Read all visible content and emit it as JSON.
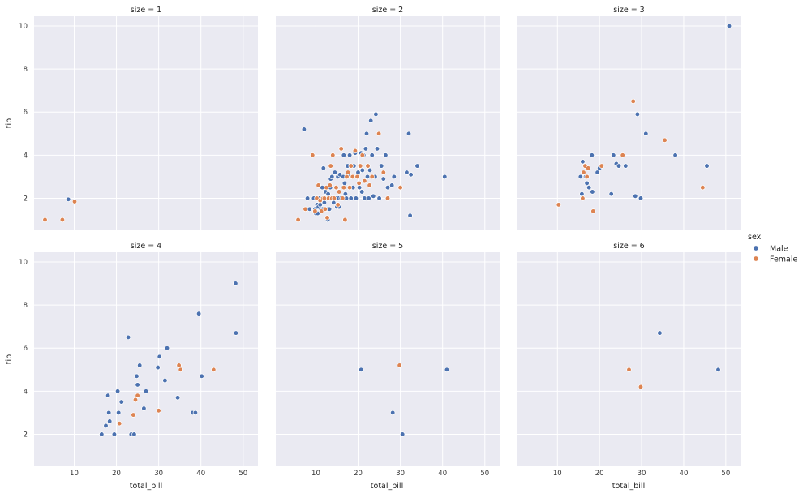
{
  "chart_data": {
    "type": "scatter",
    "x_label": "total_bill",
    "y_label": "tip",
    "xlim": [
      0.5,
      53.5
    ],
    "ylim": [
      0.55,
      10.45
    ],
    "x_ticks": [
      10,
      20,
      30,
      40,
      50
    ],
    "y_ticks": [
      2,
      4,
      6,
      8,
      10
    ],
    "grid": true,
    "legend": {
      "title": "sex",
      "position": "right",
      "entries": [
        {
          "name": "Male",
          "color": "#4c72b0"
        },
        {
          "name": "Female",
          "color": "#dd8452"
        }
      ]
    },
    "panels": [
      {
        "title": "size = 1",
        "male": [
          [
            8.6,
            1.95
          ]
        ],
        "female": [
          [
            3.1,
            1.0
          ],
          [
            7.2,
            1.0
          ],
          [
            10.1,
            1.85
          ]
        ]
      },
      {
        "title": "size = 2",
        "male": [
          [
            7.2,
            5.2
          ],
          [
            8.0,
            2.0
          ],
          [
            8.5,
            1.5
          ],
          [
            9.5,
            2.0
          ],
          [
            9.8,
            1.5
          ],
          [
            10.0,
            1.3
          ],
          [
            10.3,
            1.7
          ],
          [
            10.4,
            1.3
          ],
          [
            10.6,
            1.6
          ],
          [
            10.8,
            2.0
          ],
          [
            11.0,
            1.7
          ],
          [
            11.2,
            1.5
          ],
          [
            11.5,
            2.5
          ],
          [
            11.6,
            1.5
          ],
          [
            11.8,
            3.4
          ],
          [
            12.0,
            1.8
          ],
          [
            12.2,
            2.0
          ],
          [
            12.3,
            2.3
          ],
          [
            12.5,
            1.5
          ],
          [
            12.8,
            1.0
          ],
          [
            12.9,
            2.2
          ],
          [
            13.0,
            2.0
          ],
          [
            13.2,
            1.5
          ],
          [
            13.4,
            2.5
          ],
          [
            13.5,
            2.9
          ],
          [
            13.8,
            3.0
          ],
          [
            14.0,
            2.0
          ],
          [
            14.2,
            1.8
          ],
          [
            14.5,
            3.2
          ],
          [
            14.8,
            2.0
          ],
          [
            15.0,
            1.6
          ],
          [
            15.2,
            3.0
          ],
          [
            15.4,
            2.0
          ],
          [
            15.5,
            1.6
          ],
          [
            15.7,
            3.1
          ],
          [
            16.0,
            2.0
          ],
          [
            16.3,
            2.5
          ],
          [
            16.5,
            3.0
          ],
          [
            16.6,
            4.0
          ],
          [
            16.8,
            2.7
          ],
          [
            17.0,
            2.2
          ],
          [
            17.2,
            2.0
          ],
          [
            17.5,
            3.5
          ],
          [
            17.8,
            3.1
          ],
          [
            18.0,
            4.0
          ],
          [
            18.3,
            2.0
          ],
          [
            18.5,
            3.0
          ],
          [
            18.8,
            2.5
          ],
          [
            19.0,
            3.5
          ],
          [
            19.3,
            4.1
          ],
          [
            19.5,
            2.0
          ],
          [
            19.8,
            3.0
          ],
          [
            20.0,
            3.2
          ],
          [
            20.3,
            2.5
          ],
          [
            20.7,
            4.1
          ],
          [
            20.9,
            2.3
          ],
          [
            21.0,
            3.3
          ],
          [
            21.3,
            4.0
          ],
          [
            21.5,
            2.0
          ],
          [
            21.8,
            4.3
          ],
          [
            22.0,
            5.0
          ],
          [
            22.2,
            3.0
          ],
          [
            22.5,
            2.0
          ],
          [
            22.8,
            3.3
          ],
          [
            23.0,
            5.6
          ],
          [
            23.3,
            4.0
          ],
          [
            23.6,
            2.1
          ],
          [
            24.0,
            3.0
          ],
          [
            24.2,
            5.9
          ],
          [
            24.5,
            4.3
          ],
          [
            25.0,
            2.0
          ],
          [
            25.5,
            3.5
          ],
          [
            26.0,
            2.9
          ],
          [
            26.5,
            4.0
          ],
          [
            27.0,
            2.5
          ],
          [
            28.0,
            2.6
          ],
          [
            28.5,
            3.0
          ],
          [
            31.5,
            3.2
          ],
          [
            32.0,
            5.0
          ],
          [
            32.3,
            1.2
          ],
          [
            32.5,
            3.1
          ],
          [
            34.0,
            3.5
          ],
          [
            40.5,
            3.0
          ]
        ],
        "female": [
          [
            5.8,
            1.0
          ],
          [
            7.5,
            1.5
          ],
          [
            9.2,
            4.0
          ],
          [
            9.8,
            1.4
          ],
          [
            10.2,
            2.0
          ],
          [
            10.6,
            2.6
          ],
          [
            11.0,
            1.9
          ],
          [
            11.3,
            1.4
          ],
          [
            11.7,
            2.0
          ],
          [
            12.0,
            2.0
          ],
          [
            12.2,
            1.5
          ],
          [
            12.5,
            2.5
          ],
          [
            12.7,
            1.1
          ],
          [
            13.0,
            2.0
          ],
          [
            13.3,
            2.6
          ],
          [
            13.5,
            3.5
          ],
          [
            13.8,
            2.0
          ],
          [
            14.0,
            4.0
          ],
          [
            14.3,
            2.0
          ],
          [
            14.8,
            2.5
          ],
          [
            15.2,
            1.7
          ],
          [
            15.5,
            2.3
          ],
          [
            16.0,
            4.3
          ],
          [
            16.3,
            2.0
          ],
          [
            16.6,
            2.5
          ],
          [
            16.9,
            1.0
          ],
          [
            17.3,
            3.0
          ],
          [
            17.6,
            3.2
          ],
          [
            18.0,
            2.5
          ],
          [
            18.3,
            3.5
          ],
          [
            18.7,
            3.0
          ],
          [
            19.3,
            4.2
          ],
          [
            19.8,
            3.0
          ],
          [
            20.2,
            2.7
          ],
          [
            20.5,
            3.5
          ],
          [
            21.0,
            4.0
          ],
          [
            21.5,
            2.8
          ],
          [
            22.3,
            3.5
          ],
          [
            22.7,
            2.6
          ],
          [
            23.3,
            3.0
          ],
          [
            24.9,
            5.0
          ],
          [
            26.0,
            3.2
          ],
          [
            27.0,
            2.0
          ],
          [
            30.0,
            2.5
          ]
        ]
      },
      {
        "title": "size = 3",
        "male": [
          [
            15.5,
            3.0
          ],
          [
            15.8,
            2.2
          ],
          [
            16.0,
            3.7
          ],
          [
            16.7,
            3.0
          ],
          [
            17.0,
            2.7
          ],
          [
            17.5,
            2.5
          ],
          [
            18.2,
            4.0
          ],
          [
            18.3,
            2.3
          ],
          [
            19.5,
            3.2
          ],
          [
            20.0,
            3.4
          ],
          [
            22.8,
            2.2
          ],
          [
            23.3,
            4.0
          ],
          [
            24.0,
            3.6
          ],
          [
            24.6,
            3.5
          ],
          [
            26.2,
            3.5
          ],
          [
            28.5,
            2.1
          ],
          [
            29.0,
            5.9
          ],
          [
            29.8,
            2.0
          ],
          [
            31.0,
            5.0
          ],
          [
            38.0,
            4.0
          ],
          [
            45.5,
            3.5
          ],
          [
            50.8,
            10.0
          ]
        ],
        "female": [
          [
            10.3,
            1.7
          ],
          [
            16.0,
            2.0
          ],
          [
            16.2,
            3.2
          ],
          [
            16.6,
            3.5
          ],
          [
            17.0,
            3.0
          ],
          [
            17.3,
            3.4
          ],
          [
            18.5,
            1.4
          ],
          [
            20.5,
            3.5
          ],
          [
            25.5,
            4.0
          ],
          [
            28.0,
            6.5
          ],
          [
            35.5,
            4.7
          ],
          [
            44.5,
            2.5
          ]
        ]
      },
      {
        "title": "size = 4",
        "male": [
          [
            16.5,
            2.0
          ],
          [
            17.5,
            2.4
          ],
          [
            18.0,
            3.8
          ],
          [
            18.2,
            3.0
          ],
          [
            18.4,
            2.6
          ],
          [
            19.5,
            2.0
          ],
          [
            20.3,
            4.0
          ],
          [
            20.5,
            3.0
          ],
          [
            21.2,
            3.5
          ],
          [
            22.8,
            6.5
          ],
          [
            23.5,
            2.0
          ],
          [
            24.2,
            2.0
          ],
          [
            24.8,
            4.7
          ],
          [
            25.0,
            4.3
          ],
          [
            25.5,
            5.2
          ],
          [
            26.5,
            3.2
          ],
          [
            27.0,
            4.0
          ],
          [
            29.8,
            5.1
          ],
          [
            30.2,
            5.6
          ],
          [
            31.5,
            4.5
          ],
          [
            32.0,
            6.0
          ],
          [
            34.5,
            3.7
          ],
          [
            38.0,
            3.0
          ],
          [
            38.7,
            3.0
          ],
          [
            39.5,
            7.6
          ],
          [
            40.2,
            4.7
          ],
          [
            48.2,
            9.0
          ],
          [
            48.3,
            6.7
          ]
        ],
        "female": [
          [
            20.7,
            2.5
          ],
          [
            24.0,
            2.9
          ],
          [
            24.5,
            3.6
          ],
          [
            25.0,
            3.8
          ],
          [
            30.0,
            3.1
          ],
          [
            34.8,
            5.2
          ],
          [
            35.2,
            5.0
          ],
          [
            43.0,
            5.0
          ]
        ]
      },
      {
        "title": "size = 5",
        "male": [
          [
            20.7,
            5.0
          ],
          [
            28.2,
            3.0
          ],
          [
            30.5,
            2.0
          ],
          [
            41.0,
            5.0
          ]
        ],
        "female": [
          [
            29.8,
            5.2
          ]
        ]
      },
      {
        "title": "size = 6",
        "male": [
          [
            34.3,
            6.7
          ],
          [
            48.2,
            5.0
          ]
        ],
        "female": [
          [
            27.0,
            5.0
          ],
          [
            29.8,
            4.2
          ]
        ]
      }
    ]
  }
}
